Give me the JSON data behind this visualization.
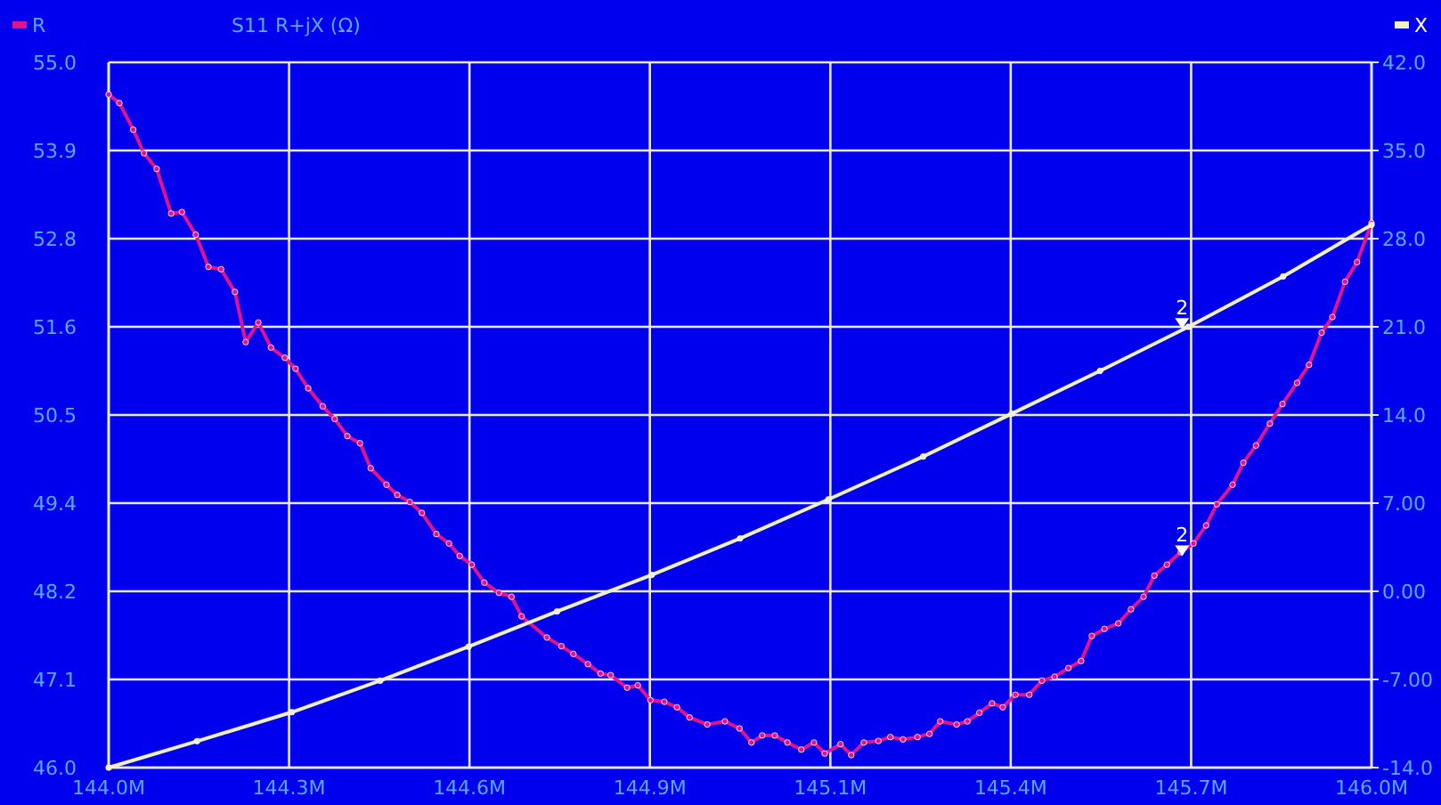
{
  "chart_data": {
    "type": "line",
    "title": "S11 R+jX (Ω)",
    "xlim": [
      144.0,
      146.0
    ],
    "xticks": [
      {
        "value": 144.0,
        "label": "144.0M"
      },
      {
        "value": 144.2857,
        "label": "144.3M"
      },
      {
        "value": 144.5714,
        "label": "144.6M"
      },
      {
        "value": 144.8571,
        "label": "144.9M"
      },
      {
        "value": 145.1429,
        "label": "145.1M"
      },
      {
        "value": 145.4286,
        "label": "145.4M"
      },
      {
        "value": 145.7143,
        "label": "145.7M"
      },
      {
        "value": 146.0,
        "label": "146.0M"
      }
    ],
    "ylim": [
      46.0,
      55.0
    ],
    "yticks": [
      {
        "value": 46.0,
        "label": "46.0"
      },
      {
        "value": 47.125,
        "label": "47.1"
      },
      {
        "value": 48.25,
        "label": "48.2"
      },
      {
        "value": 49.375,
        "label": "49.4"
      },
      {
        "value": 50.5,
        "label": "50.5"
      },
      {
        "value": 51.625,
        "label": "51.6"
      },
      {
        "value": 52.75,
        "label": "52.8"
      },
      {
        "value": 53.875,
        "label": "53.9"
      },
      {
        "value": 55.0,
        "label": "55.0"
      }
    ],
    "y2lim": [
      -14.0,
      42.0
    ],
    "y2ticks": [
      {
        "value": -14,
        "label": "-14.0"
      },
      {
        "value": -7,
        "label": "-7.00"
      },
      {
        "value": 0,
        "label": "0.00"
      },
      {
        "value": 7,
        "label": "7.00"
      },
      {
        "value": 14,
        "label": "14.0"
      },
      {
        "value": 21,
        "label": "21.0"
      },
      {
        "value": 28,
        "label": "28.0"
      },
      {
        "value": 35,
        "label": "35.0"
      },
      {
        "value": 42,
        "label": "42.0"
      }
    ],
    "grid": true,
    "legend": "top",
    "marker": "circle",
    "line_style": "solid",
    "series": [
      {
        "name": "R",
        "color": "#e0148c",
        "x": [
          144.0,
          144.017,
          144.039,
          144.056,
          144.076,
          144.099,
          144.116,
          144.138,
          144.158,
          144.178,
          144.2,
          144.217,
          144.237,
          144.257,
          144.279,
          144.296,
          144.316,
          144.339,
          144.358,
          144.378,
          144.398,
          144.415,
          144.44,
          144.457,
          144.477,
          144.496,
          144.519,
          144.539,
          144.556,
          144.575,
          144.595,
          144.618,
          144.638,
          144.654,
          144.694,
          144.717,
          144.736,
          144.759,
          144.779,
          144.795,
          144.821,
          144.838,
          144.858,
          144.88,
          144.9,
          144.92,
          144.948,
          144.976,
          144.999,
          145.018,
          145.035,
          145.055,
          145.075,
          145.097,
          145.117,
          145.134,
          145.159,
          145.176,
          145.196,
          145.219,
          145.238,
          145.258,
          145.281,
          145.3,
          145.317,
          145.343,
          145.36,
          145.379,
          145.399,
          145.416,
          145.436,
          145.458,
          145.478,
          145.498,
          145.52,
          145.54,
          145.557,
          145.577,
          145.599,
          145.619,
          145.639,
          145.656,
          145.676,
          145.698,
          145.718,
          145.738,
          145.755,
          145.78,
          145.797,
          145.817,
          145.839,
          145.859,
          145.882,
          145.901,
          145.921,
          145.938,
          145.958,
          145.977,
          146.0
        ],
        "values": [
          54.59,
          54.48,
          54.14,
          53.84,
          53.64,
          53.07,
          53.09,
          52.8,
          52.39,
          52.36,
          52.07,
          51.43,
          51.68,
          51.36,
          51.23,
          51.09,
          50.84,
          50.61,
          50.45,
          50.23,
          50.14,
          49.82,
          49.61,
          49.48,
          49.39,
          49.25,
          48.98,
          48.86,
          48.7,
          48.59,
          48.36,
          48.23,
          48.18,
          47.93,
          47.66,
          47.55,
          47.45,
          47.32,
          47.2,
          47.18,
          47.02,
          47.05,
          46.86,
          46.84,
          46.77,
          46.64,
          46.55,
          46.59,
          46.5,
          46.32,
          46.41,
          46.41,
          46.32,
          46.23,
          46.32,
          46.18,
          46.3,
          46.16,
          46.32,
          46.34,
          46.39,
          46.36,
          46.39,
          46.43,
          46.59,
          46.55,
          46.59,
          46.7,
          46.82,
          46.77,
          46.93,
          46.93,
          47.11,
          47.16,
          47.27,
          47.36,
          47.68,
          47.77,
          47.84,
          48.02,
          48.18,
          48.45,
          48.59,
          48.75,
          48.86,
          49.09,
          49.36,
          49.61,
          49.89,
          50.11,
          50.39,
          50.64,
          50.91,
          51.14,
          51.55,
          51.75,
          52.2,
          52.45,
          52.95
        ]
      },
      {
        "name": "X",
        "color": "#f0f0c8",
        "axis": "y2",
        "x": [
          144.0,
          144.14,
          144.29,
          144.43,
          144.57,
          144.71,
          144.86,
          145.0,
          145.14,
          145.29,
          145.43,
          145.57,
          145.71,
          145.86,
          146.0
        ],
        "values": [
          -14.0,
          -11.9,
          -9.6,
          -7.1,
          -4.4,
          -1.6,
          1.3,
          4.2,
          7.3,
          10.7,
          14.1,
          17.5,
          21.0,
          25.0,
          29.1
        ]
      }
    ],
    "annotations": [
      {
        "text": "2",
        "x": 145.7,
        "y": 48.7
      },
      {
        "text": "2",
        "x": 145.7,
        "y": 51.6
      }
    ]
  }
}
